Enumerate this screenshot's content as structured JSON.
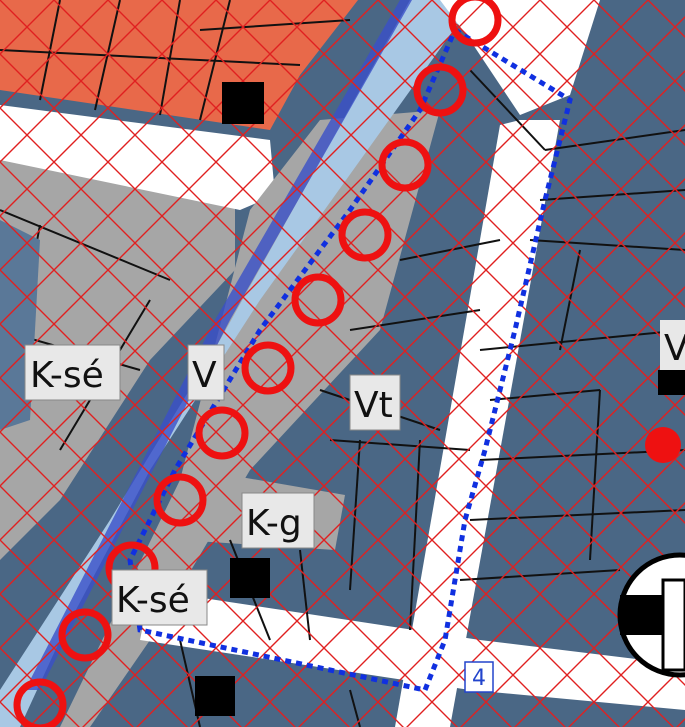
{
  "zones": [
    {
      "code": "K-sé"
    },
    {
      "code": "V"
    },
    {
      "code": "Vt"
    },
    {
      "code": "K-g"
    },
    {
      "code": "K-sé"
    },
    {
      "code": "V"
    }
  ],
  "plan_area_number": "4",
  "colors": {
    "residential_dark": "#4a6785",
    "commercial_gray": "#a6a6a6",
    "road_white": "#ffffff",
    "waterway_light_blue": "#a8c8e4",
    "orange_block": "#e8694a",
    "green_patch": "#9ccc9c",
    "hatch_red": "#e02020",
    "boundary_blue": "#1030e0",
    "ring_red": "#ee1111"
  }
}
